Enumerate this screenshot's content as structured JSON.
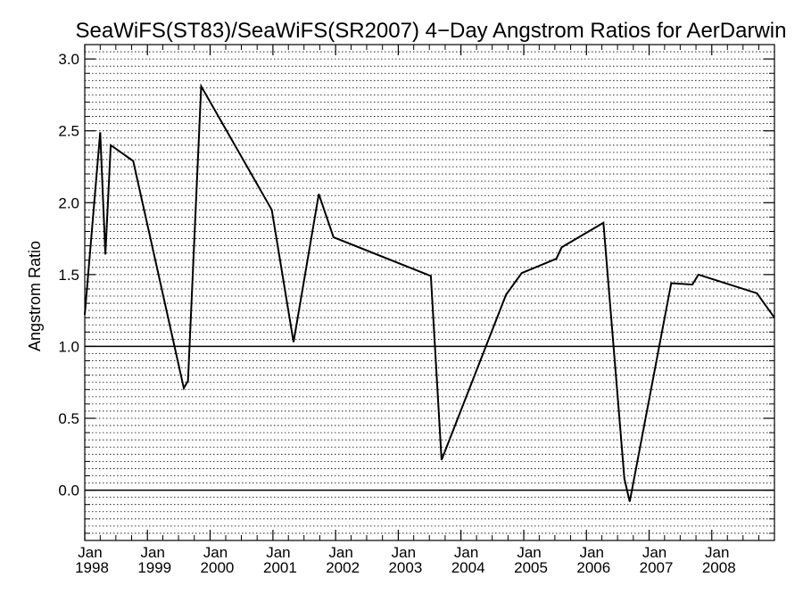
{
  "chart_data": {
    "type": "line",
    "title": "SeaWiFS(ST83)/SeaWiFS(SR2007) 4−Day Angstrom Ratios for AerDarwin",
    "xlabel": "",
    "ylabel": "Angstrom Ratio",
    "xlim": [
      "1998-01-01",
      "2008-12-31"
    ],
    "ylim": [
      -0.35,
      3.1
    ],
    "yticks": [
      0.0,
      0.5,
      1.0,
      1.5,
      2.0,
      2.5,
      3.0
    ],
    "ytick_labels": [
      "0.0",
      "0.5",
      "1.0",
      "1.5",
      "2.0",
      "2.5",
      "3.0"
    ],
    "xticks": [
      {
        "date": "1998-01-01",
        "month": "Jan",
        "year": "1998"
      },
      {
        "date": "1999-01-01",
        "month": "Jan",
        "year": "1999"
      },
      {
        "date": "2000-01-01",
        "month": "Jan",
        "year": "2000"
      },
      {
        "date": "2001-01-01",
        "month": "Jan",
        "year": "2001"
      },
      {
        "date": "2002-01-01",
        "month": "Jan",
        "year": "2002"
      },
      {
        "date": "2003-01-01",
        "month": "Jan",
        "year": "2003"
      },
      {
        "date": "2004-01-01",
        "month": "Jan",
        "year": "2004"
      },
      {
        "date": "2005-01-01",
        "month": "Jan",
        "year": "2005"
      },
      {
        "date": "2006-01-01",
        "month": "Jan",
        "year": "2006"
      },
      {
        "date": "2007-01-01",
        "month": "Jan",
        "year": "2007"
      },
      {
        "date": "2008-01-01",
        "month": "Jan",
        "year": "2008"
      }
    ],
    "grid": true,
    "reference_lines": [
      0.0,
      1.0
    ],
    "series": [
      {
        "color": "#000000",
        "x": [
          "1998-01-01",
          "1998-04-01",
          "1998-05-01",
          "1998-06-01",
          "1998-10-10",
          "1999-08-01",
          "1999-08-25",
          "1999-11-10",
          "2000-12-25",
          "2001-05-01",
          "2001-09-25",
          "2001-12-20",
          "2003-07-10",
          "2003-09-10",
          "2004-09-20",
          "2004-12-20",
          "2005-07-10",
          "2005-08-10",
          "2006-04-10",
          "2006-08-10",
          "2006-09-10",
          "2007-05-10",
          "2007-09-10",
          "2007-10-15",
          "2008-09-20",
          "2008-12-31"
        ],
        "y": [
          1.22,
          2.49,
          1.64,
          2.4,
          2.29,
          0.71,
          0.76,
          2.81,
          1.95,
          1.03,
          2.06,
          1.76,
          1.49,
          0.21,
          1.36,
          1.51,
          1.61,
          1.69,
          1.86,
          0.08,
          -0.08,
          1.44,
          1.43,
          1.5,
          1.37,
          1.2
        ]
      }
    ]
  }
}
